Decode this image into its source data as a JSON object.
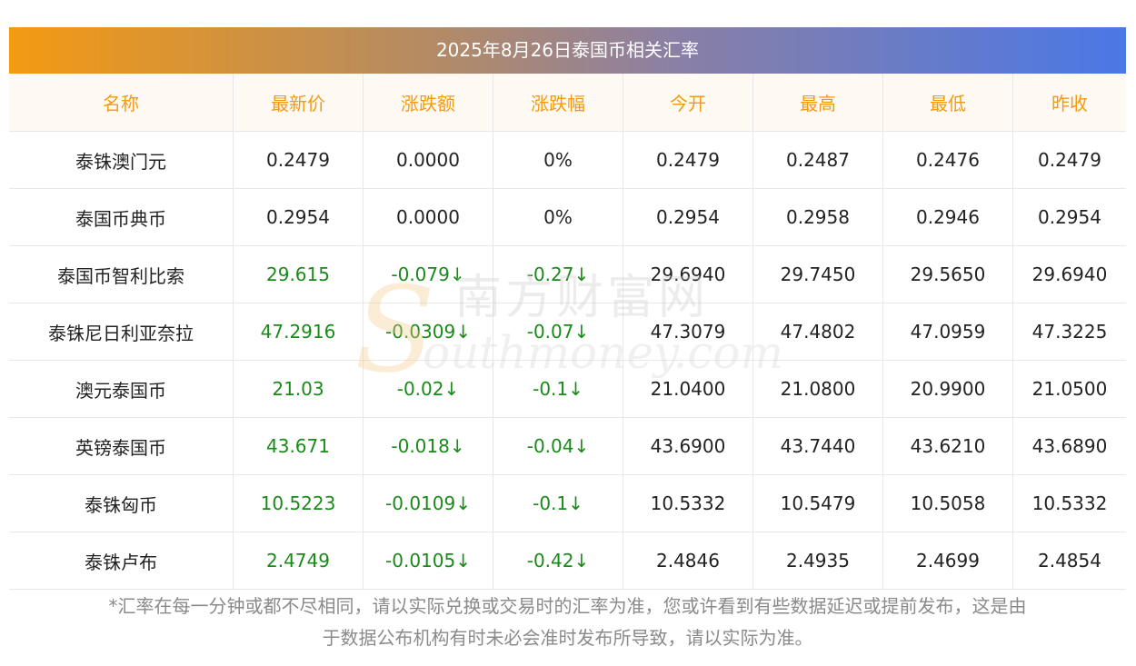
{
  "title": "2025年8月26日泰国币相关汇率",
  "headers": [
    "名称",
    "最新价",
    "涨跌额",
    "涨跌幅",
    "今开",
    "最高",
    "最低",
    "昨收"
  ],
  "rows": [
    {
      "name": "泰铢澳门元",
      "latest": "0.2479",
      "change": "0.0000",
      "pct": "0%",
      "open": "0.2479",
      "high": "0.2487",
      "low": "0.2476",
      "prev": "0.2479",
      "down": false
    },
    {
      "name": "泰国币典币",
      "latest": "0.2954",
      "change": "0.0000",
      "pct": "0%",
      "open": "0.2954",
      "high": "0.2958",
      "low": "0.2946",
      "prev": "0.2954",
      "down": false
    },
    {
      "name": "泰国币智利比索",
      "latest": "29.615",
      "change": "-0.079↓",
      "pct": "-0.27↓",
      "open": "29.6940",
      "high": "29.7450",
      "low": "29.5650",
      "prev": "29.6940",
      "down": true
    },
    {
      "name": "泰铢尼日利亚奈拉",
      "latest": "47.2916",
      "change": "-0.0309↓",
      "pct": "-0.07↓",
      "open": "47.3079",
      "high": "47.4802",
      "low": "47.0959",
      "prev": "47.3225",
      "down": true
    },
    {
      "name": "澳元泰国币",
      "latest": "21.03",
      "change": "-0.02↓",
      "pct": "-0.1↓",
      "open": "21.0400",
      "high": "21.0800",
      "low": "20.9900",
      "prev": "21.0500",
      "down": true
    },
    {
      "name": "英镑泰国币",
      "latest": "43.671",
      "change": "-0.018↓",
      "pct": "-0.04↓",
      "open": "43.6900",
      "high": "43.7440",
      "low": "43.6210",
      "prev": "43.6890",
      "down": true
    },
    {
      "name": "泰铢匈币",
      "latest": "10.5223",
      "change": "-0.0109↓",
      "pct": "-0.1↓",
      "open": "10.5332",
      "high": "10.5479",
      "low": "10.5058",
      "prev": "10.5332",
      "down": true
    },
    {
      "name": "泰铢卢布",
      "latest": "2.4749",
      "change": "-0.0105↓",
      "pct": "-0.42↓",
      "open": "2.4846",
      "high": "2.4935",
      "low": "2.4699",
      "prev": "2.4854",
      "down": true
    }
  ],
  "note_line1": "*汇率在每一分钟或都不尽相同，请以实际兑换或交易时的汇率为准，您或许看到有些数据延迟或提前发布，这是由",
  "note_line2": "于数据公布机构有时未必会准时发布所导致，请以实际为准。",
  "watermark": {
    "cn": "南方财富网",
    "en": "outhmoney.com",
    "s": "S"
  },
  "colors": {
    "header_text": "#f39a12",
    "header_bg": "#fefaf3",
    "down": "#1a8a1a",
    "grad_start": "#f39a12",
    "grad_end": "#4a78e6"
  }
}
